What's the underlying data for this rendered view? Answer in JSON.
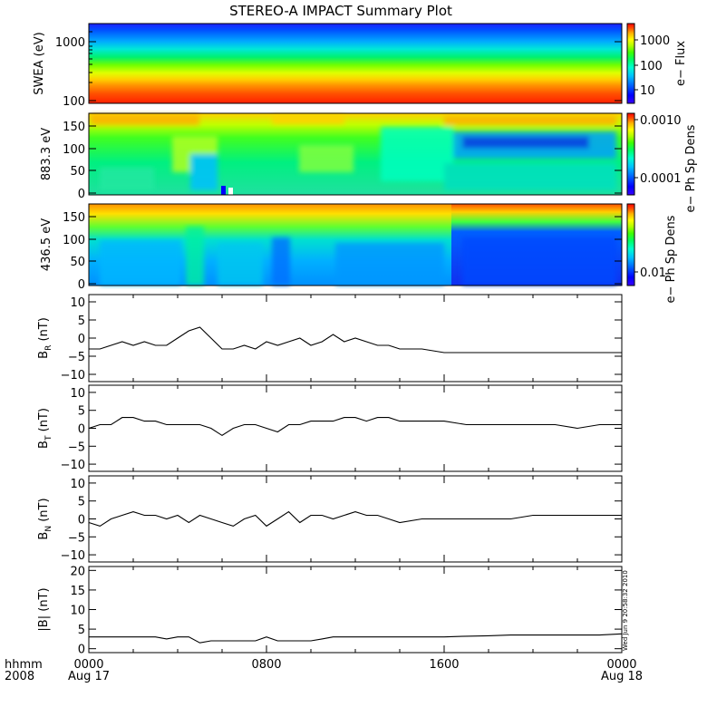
{
  "title": "STEREO-A IMPACT Summary Plot",
  "timestamp": "Wed Jun  9 20:58:32 2010",
  "x_axis": {
    "row1_label": "hhmm",
    "row2_label": "2008",
    "ticks": [
      {
        "time": "0000",
        "date": "Aug 17",
        "hour": 0
      },
      {
        "time": "0800",
        "date": "",
        "hour": 8
      },
      {
        "time": "1600",
        "date": "",
        "hour": 16
      },
      {
        "time": "0000",
        "date": "Aug 18",
        "hour": 24
      }
    ]
  },
  "colors": {
    "colormap": [
      "#3b00ff",
      "#0000ff",
      "#0060ff",
      "#00c0ff",
      "#00ffd0",
      "#00ff60",
      "#40ff00",
      "#b0ff00",
      "#ffff00",
      "#ffb000",
      "#ff5000",
      "#ff0000"
    ]
  },
  "chart_data": [
    {
      "type": "heatmap",
      "ylabel": "SWEA (eV)",
      "yscale": "log",
      "ylim": [
        100,
        2000
      ],
      "yticks": [
        "100",
        "1000"
      ],
      "colorbar": {
        "label": "e− Flux",
        "ticks": [
          "10",
          "100",
          "1000"
        ]
      }
    },
    {
      "type": "heatmap",
      "ylabel": "883.3 eV",
      "ylim": [
        0,
        180
      ],
      "yticks": [
        "0",
        "50",
        "100",
        "150"
      ],
      "colorbar": {
        "label": "e− Ph Sp Dens",
        "ticks": [
          "0.0001",
          "0.0010"
        ]
      }
    },
    {
      "type": "heatmap",
      "ylabel": "436.5 eV",
      "ylim": [
        0,
        180
      ],
      "yticks": [
        "0",
        "50",
        "100",
        "150"
      ],
      "colorbar": {
        "label": "e− Ph Sp Dens",
        "ticks": [
          "0.01"
        ]
      }
    },
    {
      "type": "line",
      "ylabel": "B",
      "ylabel_sub": "R",
      "ylabel_unit": "(nT)",
      "ylim": [
        -12,
        12
      ],
      "yticks": [
        "−10",
        "−5",
        "0",
        "5",
        "10"
      ],
      "x": [
        0,
        0.5,
        1,
        1.5,
        2,
        2.5,
        3,
        3.5,
        4,
        4.5,
        5,
        5.5,
        6,
        6.5,
        7,
        7.5,
        8,
        8.5,
        9,
        9.5,
        10,
        10.5,
        11,
        11.5,
        12,
        12.5,
        13,
        13.5,
        14,
        15,
        16,
        17,
        18,
        19,
        20,
        21,
        22,
        23,
        24
      ],
      "y": [
        -3,
        -3,
        -2,
        -1,
        -2,
        -1,
        -2,
        -2,
        0,
        2,
        3,
        0,
        -3,
        -3,
        -2,
        -3,
        -1,
        -2,
        -1,
        0,
        -2,
        -1,
        1,
        -1,
        0,
        -1,
        -2,
        -2,
        -3,
        -3,
        -4,
        -4,
        -4,
        -4,
        -4,
        -4,
        -4,
        -4,
        -4
      ]
    },
    {
      "type": "line",
      "ylabel": "B",
      "ylabel_sub": "T",
      "ylabel_unit": "(nT)",
      "ylim": [
        -12,
        12
      ],
      "yticks": [
        "−10",
        "−5",
        "0",
        "5",
        "10"
      ],
      "x": [
        0,
        0.5,
        1,
        1.5,
        2,
        2.5,
        3,
        3.5,
        4,
        4.5,
        5,
        5.5,
        6,
        6.5,
        7,
        7.5,
        8,
        8.5,
        9,
        9.5,
        10,
        10.5,
        11,
        11.5,
        12,
        12.5,
        13,
        13.5,
        14,
        15,
        16,
        17,
        18,
        19,
        20,
        21,
        22,
        23,
        24
      ],
      "y": [
        0,
        1,
        1,
        3,
        3,
        2,
        2,
        1,
        1,
        1,
        1,
        0,
        -2,
        0,
        1,
        1,
        0,
        -1,
        1,
        1,
        2,
        2,
        2,
        3,
        3,
        2,
        3,
        3,
        2,
        2,
        2,
        1,
        1,
        1,
        1,
        1,
        0,
        1,
        1
      ]
    },
    {
      "type": "line",
      "ylabel": "B",
      "ylabel_sub": "N",
      "ylabel_unit": "(nT)",
      "ylim": [
        -12,
        12
      ],
      "yticks": [
        "−10",
        "−5",
        "0",
        "5",
        "10"
      ],
      "x": [
        0,
        0.5,
        1,
        1.5,
        2,
        2.5,
        3,
        3.5,
        4,
        4.5,
        5,
        5.5,
        6,
        6.5,
        7,
        7.5,
        8,
        8.5,
        9,
        9.5,
        10,
        10.5,
        11,
        11.5,
        12,
        12.5,
        13,
        13.5,
        14,
        15,
        16,
        17,
        18,
        19,
        20,
        21,
        22,
        23,
        24
      ],
      "y": [
        -1,
        -2,
        0,
        1,
        2,
        1,
        1,
        0,
        1,
        -1,
        1,
        0,
        -1,
        -2,
        0,
        1,
        -2,
        0,
        2,
        -1,
        1,
        1,
        0,
        1,
        2,
        1,
        1,
        0,
        -1,
        0,
        0,
        0,
        0,
        0,
        1,
        1,
        1,
        1,
        1
      ]
    },
    {
      "type": "line",
      "ylabel": "|B|",
      "ylabel_sub": "",
      "ylabel_unit": "(nT)",
      "ylim": [
        -1,
        21
      ],
      "yticks": [
        "0",
        "5",
        "10",
        "15",
        "20"
      ],
      "x": [
        0,
        0.5,
        1,
        1.5,
        2,
        2.5,
        3,
        3.5,
        4,
        4.5,
        5,
        5.5,
        6,
        6.5,
        7,
        7.5,
        8,
        8.5,
        9,
        9.5,
        10,
        10.5,
        11,
        11.5,
        12,
        12.5,
        13,
        13.5,
        14,
        15,
        16,
        17,
        18,
        19,
        20,
        21,
        22,
        23,
        24
      ],
      "y": [
        3,
        3,
        3,
        3,
        3,
        3,
        3,
        2.5,
        3,
        3,
        1.5,
        2,
        2,
        2,
        2,
        2,
        3,
        2,
        2,
        2,
        2,
        2.5,
        3,
        3,
        3,
        3,
        3,
        3,
        3,
        3,
        3,
        3.2,
        3.3,
        3.5,
        3.5,
        3.5,
        3.5,
        3.5,
        3.8
      ]
    }
  ]
}
